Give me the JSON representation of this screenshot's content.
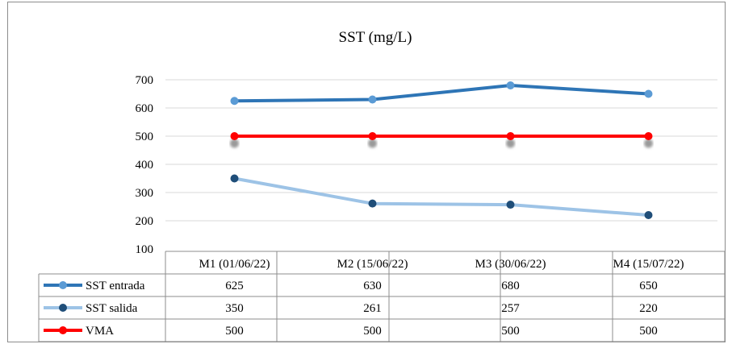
{
  "chart_data": {
    "type": "line",
    "title": "SST (mg/L)",
    "categories": [
      "M1 (01/06/22)",
      "M2 (15/06/22)",
      "M3 (30/06/22)",
      "M4 (15/07/22)"
    ],
    "series": [
      {
        "name": "SST entrada",
        "values": [
          625,
          630,
          680,
          650
        ],
        "color": "#2e75b6",
        "marker_color": "#5b9bd5"
      },
      {
        "name": "SST salida",
        "values": [
          350,
          261,
          257,
          220
        ],
        "color": "#9dc3e6",
        "marker_color": "#1f4e79"
      },
      {
        "name": "VMA",
        "values": [
          500,
          500,
          500,
          500
        ],
        "color": "#ff0000",
        "marker_color": "#ff0000",
        "shadow": true
      }
    ],
    "ylim": [
      100,
      700
    ],
    "yticks": [
      100,
      200,
      300,
      400,
      500,
      600,
      700
    ],
    "xlabel": "",
    "ylabel": "",
    "grid": true,
    "legend": "data-table"
  }
}
